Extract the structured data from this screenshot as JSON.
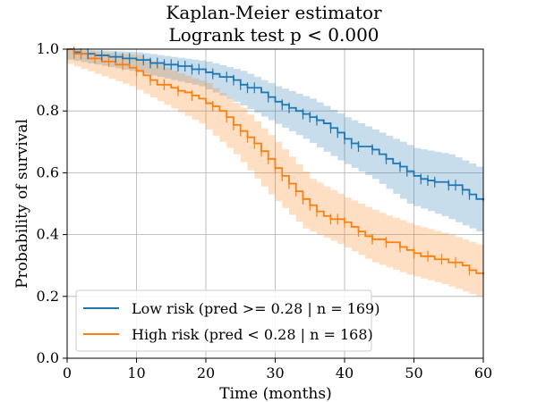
{
  "chart_data": {
    "type": "line",
    "title": "Kaplan-Meier estimator",
    "subtitle": "Logrank test p < 0.000",
    "xlabel": "Time (months)",
    "ylabel": "Probability of survival",
    "xlim": [
      0,
      60
    ],
    "ylim": [
      0,
      1.0
    ],
    "xticks": [
      0,
      10,
      20,
      30,
      40,
      50,
      60
    ],
    "xtick_labels": [
      "0",
      "10",
      "20",
      "30",
      "40",
      "50",
      "60"
    ],
    "yticks": [
      0.0,
      0.2,
      0.4,
      0.6,
      0.8,
      1.0
    ],
    "ytick_labels": [
      "0.0",
      "0.2",
      "0.4",
      "0.6",
      "0.8",
      "1.0"
    ],
    "grid": true,
    "legend_position": "bottom-left",
    "series": [
      {
        "name": "Low risk (pred >= 0.28 | n = 169)",
        "color": "#1f77b4",
        "steps": [
          [
            0,
            1.0
          ],
          [
            1,
            0.99
          ],
          [
            2,
            0.985
          ],
          [
            4,
            0.98
          ],
          [
            6,
            0.975
          ],
          [
            8,
            0.97
          ],
          [
            10,
            0.965
          ],
          [
            12,
            0.955
          ],
          [
            14,
            0.95
          ],
          [
            16,
            0.945
          ],
          [
            18,
            0.935
          ],
          [
            20,
            0.925
          ],
          [
            21,
            0.92
          ],
          [
            22,
            0.91
          ],
          [
            24,
            0.9
          ],
          [
            25,
            0.885
          ],
          [
            26,
            0.875
          ],
          [
            28,
            0.86
          ],
          [
            29,
            0.845
          ],
          [
            30,
            0.83
          ],
          [
            31,
            0.82
          ],
          [
            32,
            0.81
          ],
          [
            33,
            0.8
          ],
          [
            34,
            0.79
          ],
          [
            35,
            0.78
          ],
          [
            36,
            0.77
          ],
          [
            37,
            0.76
          ],
          [
            38,
            0.745
          ],
          [
            39,
            0.73
          ],
          [
            40,
            0.71
          ],
          [
            41,
            0.695
          ],
          [
            42,
            0.685
          ],
          [
            44,
            0.675
          ],
          [
            45,
            0.66
          ],
          [
            46,
            0.645
          ],
          [
            47,
            0.63
          ],
          [
            48,
            0.62
          ],
          [
            49,
            0.605
          ],
          [
            50,
            0.59
          ],
          [
            51,
            0.58
          ],
          [
            52,
            0.575
          ],
          [
            53,
            0.57
          ],
          [
            55,
            0.56
          ],
          [
            57,
            0.545
          ],
          [
            58,
            0.53
          ],
          [
            59,
            0.515
          ],
          [
            60,
            0.51
          ]
        ],
        "ci_lower": [
          [
            0,
            0.97
          ],
          [
            10,
            0.93
          ],
          [
            20,
            0.88
          ],
          [
            25,
            0.83
          ],
          [
            30,
            0.77
          ],
          [
            35,
            0.71
          ],
          [
            40,
            0.64
          ],
          [
            45,
            0.58
          ],
          [
            50,
            0.5
          ],
          [
            55,
            0.46
          ],
          [
            60,
            0.41
          ]
        ],
        "ci_upper": [
          [
            0,
            1.0
          ],
          [
            10,
            0.99
          ],
          [
            20,
            0.96
          ],
          [
            25,
            0.93
          ],
          [
            30,
            0.88
          ],
          [
            35,
            0.84
          ],
          [
            40,
            0.78
          ],
          [
            45,
            0.73
          ],
          [
            50,
            0.68
          ],
          [
            55,
            0.66
          ],
          [
            60,
            0.61
          ]
        ],
        "censor_times": [
          1,
          2,
          3,
          5,
          7,
          8,
          9,
          11,
          12,
          13,
          14,
          15,
          16,
          17,
          18,
          19,
          21,
          23,
          24,
          25,
          26,
          27,
          29,
          31,
          32,
          34,
          35,
          36,
          38,
          39,
          40,
          41,
          42,
          44,
          46,
          48,
          49,
          51,
          52,
          53,
          55,
          56,
          57,
          58
        ]
      },
      {
        "name": "High risk (pred < 0.28 | n = 168)",
        "color": "#ff7f0e",
        "steps": [
          [
            0,
            1.0
          ],
          [
            1,
            0.985
          ],
          [
            3,
            0.97
          ],
          [
            5,
            0.96
          ],
          [
            7,
            0.95
          ],
          [
            9,
            0.94
          ],
          [
            10,
            0.93
          ],
          [
            11,
            0.915
          ],
          [
            12,
            0.9
          ],
          [
            13,
            0.885
          ],
          [
            15,
            0.875
          ],
          [
            16,
            0.865
          ],
          [
            17,
            0.86
          ],
          [
            18,
            0.85
          ],
          [
            19,
            0.84
          ],
          [
            20,
            0.825
          ],
          [
            21,
            0.815
          ],
          [
            22,
            0.8
          ],
          [
            23,
            0.78
          ],
          [
            24,
            0.755
          ],
          [
            25,
            0.735
          ],
          [
            26,
            0.715
          ],
          [
            27,
            0.695
          ],
          [
            28,
            0.67
          ],
          [
            29,
            0.645
          ],
          [
            30,
            0.615
          ],
          [
            31,
            0.59
          ],
          [
            32,
            0.565
          ],
          [
            33,
            0.54
          ],
          [
            34,
            0.515
          ],
          [
            35,
            0.495
          ],
          [
            36,
            0.475
          ],
          [
            37,
            0.46
          ],
          [
            38,
            0.45
          ],
          [
            40,
            0.44
          ],
          [
            41,
            0.425
          ],
          [
            42,
            0.41
          ],
          [
            43,
            0.395
          ],
          [
            44,
            0.385
          ],
          [
            46,
            0.375
          ],
          [
            48,
            0.36
          ],
          [
            49,
            0.35
          ],
          [
            50,
            0.34
          ],
          [
            51,
            0.33
          ],
          [
            53,
            0.32
          ],
          [
            55,
            0.31
          ],
          [
            57,
            0.3
          ],
          [
            58,
            0.285
          ],
          [
            59,
            0.275
          ],
          [
            60,
            0.27
          ]
        ],
        "ci_lower": [
          [
            0,
            0.96
          ],
          [
            10,
            0.88
          ],
          [
            15,
            0.82
          ],
          [
            20,
            0.76
          ],
          [
            25,
            0.66
          ],
          [
            30,
            0.53
          ],
          [
            35,
            0.42
          ],
          [
            40,
            0.37
          ],
          [
            45,
            0.31
          ],
          [
            50,
            0.27
          ],
          [
            55,
            0.24
          ],
          [
            60,
            0.2
          ]
        ],
        "ci_upper": [
          [
            0,
            1.0
          ],
          [
            10,
            0.98
          ],
          [
            15,
            0.93
          ],
          [
            20,
            0.89
          ],
          [
            25,
            0.81
          ],
          [
            30,
            0.7
          ],
          [
            35,
            0.58
          ],
          [
            40,
            0.52
          ],
          [
            45,
            0.47
          ],
          [
            50,
            0.43
          ],
          [
            55,
            0.4
          ],
          [
            60,
            0.36
          ]
        ],
        "censor_times": [
          1,
          2,
          4,
          6,
          8,
          10,
          12,
          14,
          16,
          18,
          21,
          23,
          24,
          25,
          26,
          27,
          28,
          29,
          30,
          31,
          32,
          33,
          34,
          35,
          36,
          38,
          39,
          40,
          42,
          44,
          46,
          48,
          50,
          52,
          54,
          56,
          58
        ]
      }
    ]
  }
}
